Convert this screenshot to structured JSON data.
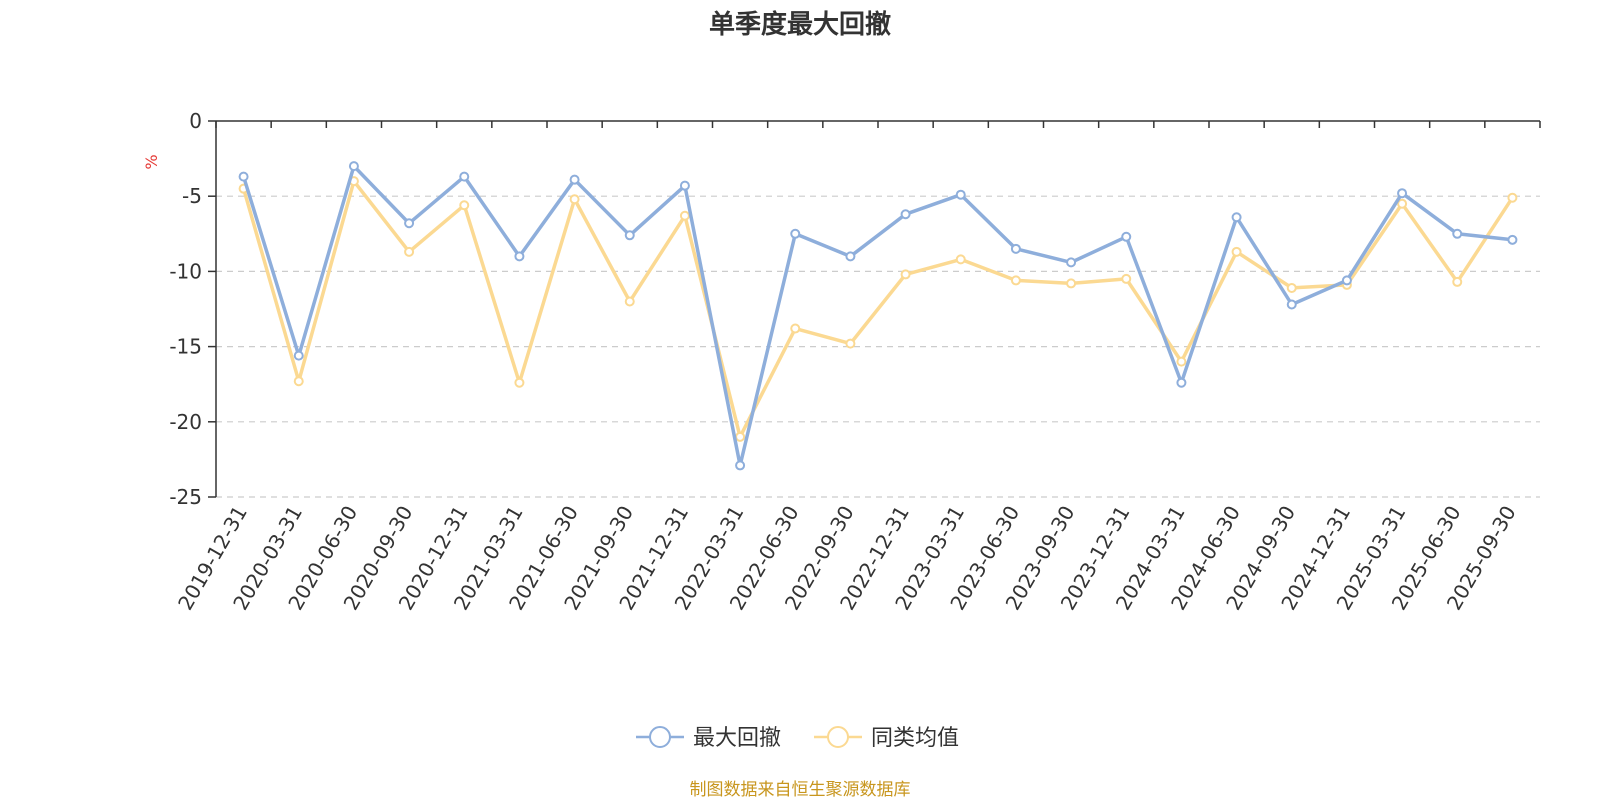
{
  "chart_data": {
    "type": "line",
    "title": "单季度最大回撤",
    "ylabel": "%",
    "ylim": [
      -25,
      0
    ],
    "yticks": [
      0,
      -5,
      -10,
      -15,
      -20,
      -25
    ],
    "grid": true,
    "legend_position": "bottom",
    "categories": [
      "2019-12-31",
      "2020-03-31",
      "2020-06-30",
      "2020-09-30",
      "2020-12-31",
      "2021-03-31",
      "2021-06-30",
      "2021-09-30",
      "2021-12-31",
      "2022-03-31",
      "2022-06-30",
      "2022-09-30",
      "2022-12-31",
      "2023-03-31",
      "2023-06-30",
      "2023-09-30",
      "2023-12-31",
      "2024-03-31",
      "2024-06-30",
      "2024-09-30",
      "2024-12-31",
      "2025-03-31",
      "2025-06-30",
      "2025-09-30"
    ],
    "series": [
      {
        "name": "最大回撤",
        "color": "#8eaedb",
        "values": [
          -3.7,
          -15.6,
          -3.0,
          -6.8,
          -3.7,
          -9.0,
          -3.9,
          -7.6,
          -4.3,
          -22.9,
          -7.5,
          -9.0,
          -6.2,
          -4.9,
          -8.5,
          -9.4,
          -7.7,
          -17.4,
          -6.4,
          -12.2,
          -10.6,
          -4.8,
          -7.5,
          -7.9
        ]
      },
      {
        "name": "同类均值",
        "color": "#fbd992",
        "values": [
          -4.5,
          -17.3,
          -4.0,
          -8.7,
          -5.6,
          -17.4,
          -5.2,
          -12.0,
          -6.3,
          -21.0,
          -13.8,
          -14.8,
          -10.2,
          -9.2,
          -10.6,
          -10.8,
          -10.5,
          -16.0,
          -8.7,
          -11.1,
          -10.9,
          -5.5,
          -10.7,
          -5.1
        ]
      }
    ],
    "source": "制图数据来自恒生聚源数据库"
  }
}
